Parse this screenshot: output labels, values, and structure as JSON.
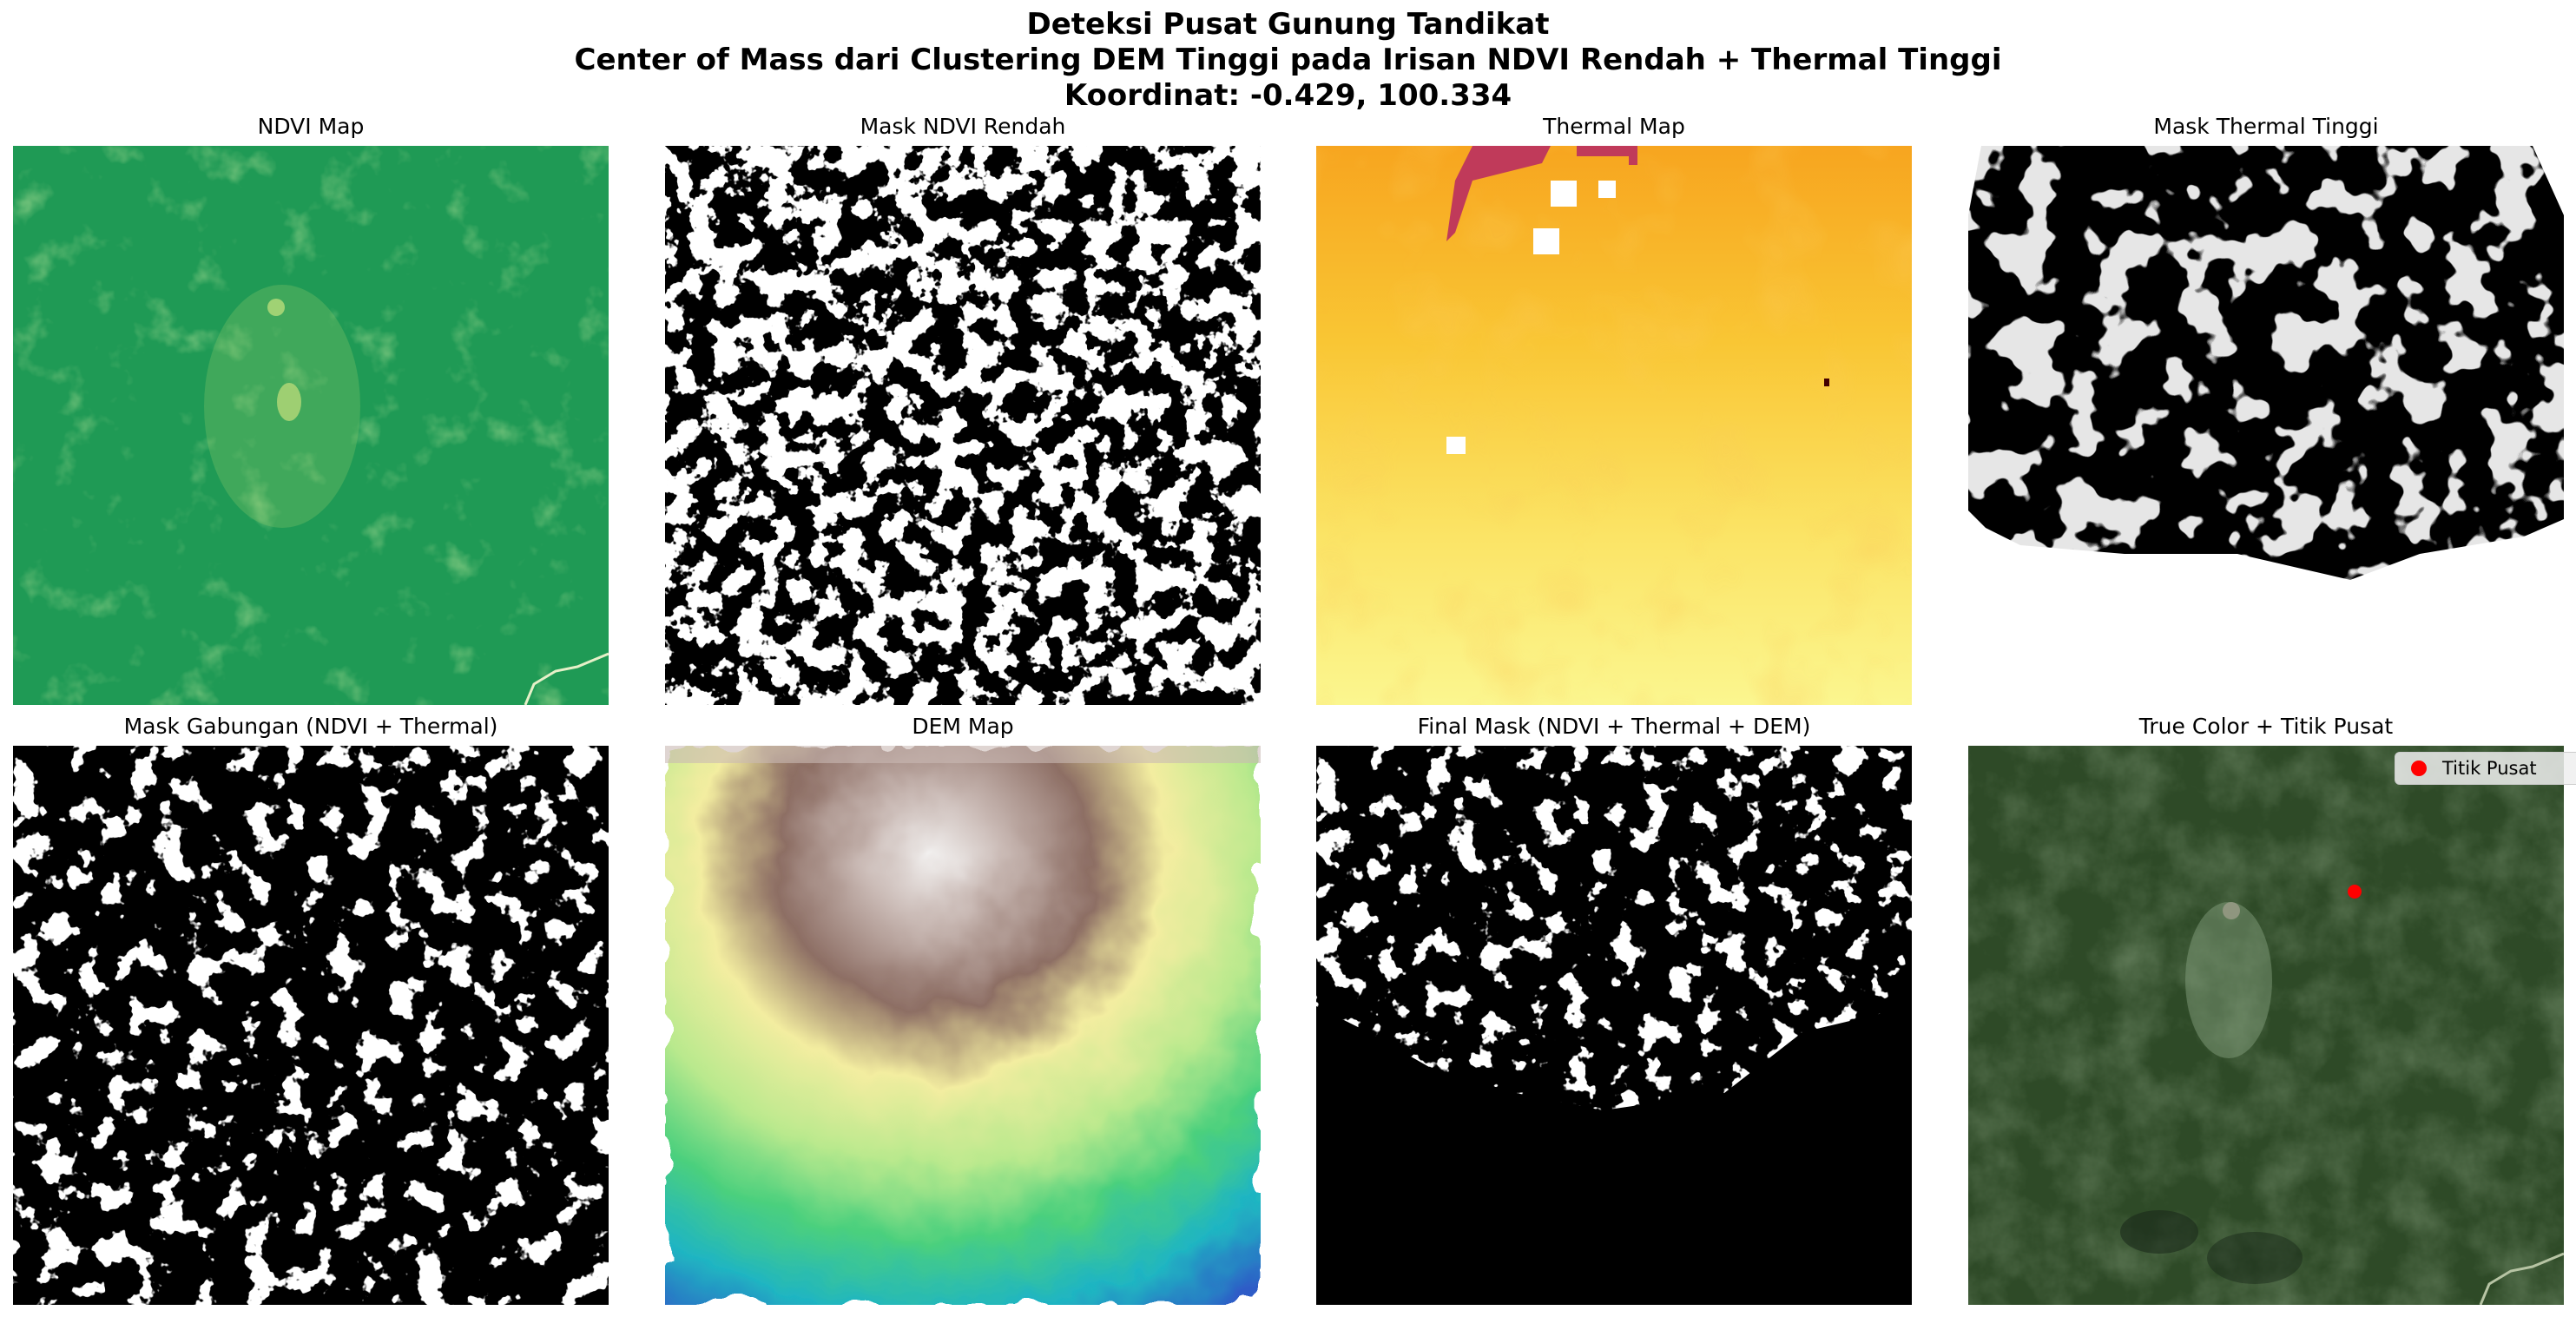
{
  "figure": {
    "title_line1": "Deteksi Pusat Gunung Tandikat",
    "title_line2": "Center of Mass dari Clustering DEM Tinggi pada Irisan NDVI Rendah + Thermal Tinggi",
    "title_line3": "Koordinat: -0.429, 100.334"
  },
  "panels": [
    {
      "title": "NDVI Map",
      "kind": "ndvi"
    },
    {
      "title": "Mask NDVI Rendah",
      "kind": "mask"
    },
    {
      "title": "Thermal Map",
      "kind": "thermal"
    },
    {
      "title": "Mask Thermal Tinggi",
      "kind": "mask"
    },
    {
      "title": "Mask Gabungan (NDVI + Thermal)",
      "kind": "mask"
    },
    {
      "title": "DEM Map",
      "kind": "dem"
    },
    {
      "title": "Final Mask (NDVI + Thermal + DEM)",
      "kind": "mask"
    },
    {
      "title": "True Color + Titik Pusat",
      "kind": "truecolor"
    }
  ],
  "legend": {
    "label": "Titik Pusat",
    "marker_color": "#ff0000"
  },
  "center_point": {
    "lat": -0.429,
    "lon": 100.334
  },
  "colors": {
    "ndvi": "#1f9a55",
    "thermal_low": "#fbf48a",
    "thermal_high": "#f6a21c",
    "thermal_hot": "#c03a5a",
    "dem_low": "#3a66c9",
    "dem_mid": "#6fd68a",
    "dem_high": "#f3f0a6",
    "dem_peak": "#7b5a52",
    "truecolor": "#2e4a27",
    "marker": "#ff0000"
  }
}
